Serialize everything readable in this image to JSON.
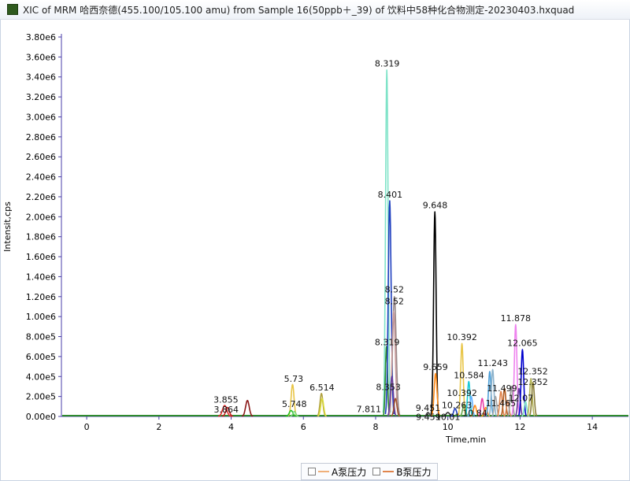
{
  "window": {
    "title": "XIC of MRM 哈西奈德(455.100/105.100 amu) from Sample 16(50ppb＋_39) of 饮料中58种化合物测定-20230403.hxquad",
    "title_color": "#2f5a1e"
  },
  "legend": [
    {
      "label": "A泵压力",
      "color": "#f0b07a"
    },
    {
      "label": "B泵压力",
      "color": "#e0844c"
    }
  ],
  "chart_data": {
    "type": "line",
    "xlabel": "Time,min",
    "ylabel": "Intensit,cps",
    "xlim": [
      -0.7,
      15
    ],
    "ylim": [
      0,
      3800000
    ],
    "x_ticks": [
      0,
      2,
      4,
      6,
      8,
      10,
      12,
      14
    ],
    "x_tick_labels": [
      "0",
      "2",
      "4",
      "6",
      "8",
      "10",
      "12",
      "14"
    ],
    "y_ticks": [
      0,
      200000,
      400000,
      600000,
      800000,
      1000000,
      1200000,
      1400000,
      1600000,
      1800000,
      2000000,
      2200000,
      2400000,
      2600000,
      2800000,
      3000000,
      3200000,
      3400000,
      3600000,
      3800000
    ],
    "y_tick_labels": [
      "0.00e0",
      "2.00e5",
      "4.00e5",
      "6.00e5",
      "8.00e5",
      "1.00e6",
      "1.20e6",
      "1.40e6",
      "1.60e6",
      "1.80e6",
      "2.00e6",
      "2.20e6",
      "2.40e6",
      "2.60e6",
      "2.80e6",
      "3.00e6",
      "3.20e6",
      "3.40e6",
      "3.60e6",
      "3.80e6"
    ],
    "grid": false,
    "baseline_color": "#2e8b2e",
    "peaks": [
      {
        "x": 3.82,
        "y": 110000,
        "w": 0.06,
        "color": "#e03030",
        "label": ""
      },
      {
        "x": 3.9,
        "y": 90000,
        "w": 0.05,
        "color": "#c81f1f",
        "label": ""
      },
      {
        "x": 4.45,
        "y": 160000,
        "w": 0.05,
        "color": "#8b1a1a",
        "label": ""
      },
      {
        "x": 5.7,
        "y": 320000,
        "w": 0.04,
        "color": "#e8c547",
        "label": ""
      },
      {
        "x": 5.66,
        "y": 60000,
        "w": 0.05,
        "color": "#27c227",
        "label": ""
      },
      {
        "x": 5.75,
        "y": 50000,
        "w": 0.04,
        "color": "#7cd67c",
        "label": ""
      },
      {
        "x": 6.5,
        "y": 230000,
        "w": 0.04,
        "color": "#b0a040",
        "label": ""
      },
      {
        "x": 6.52,
        "y": 180000,
        "w": 0.04,
        "color": "#d9d93a",
        "label": ""
      },
      {
        "x": 8.31,
        "y": 3470000,
        "w": 0.035,
        "color": "#7fe3c8",
        "label": ""
      },
      {
        "x": 8.3,
        "y": 700000,
        "w": 0.03,
        "color": "#2e8b2e",
        "label": ""
      },
      {
        "x": 8.39,
        "y": 2160000,
        "w": 0.04,
        "color": "#1f3fbf",
        "label": ""
      },
      {
        "x": 8.52,
        "y": 1200000,
        "w": 0.05,
        "color": "#9a8a8a",
        "label": ""
      },
      {
        "x": 8.5,
        "y": 1050000,
        "w": 0.045,
        "color": "#c79a9a",
        "label": ""
      },
      {
        "x": 8.45,
        "y": 400000,
        "w": 0.04,
        "color": "#6a3d9a",
        "label": ""
      },
      {
        "x": 8.55,
        "y": 180000,
        "w": 0.04,
        "color": "#a0522d",
        "label": ""
      },
      {
        "x": 9.64,
        "y": 2050000,
        "w": 0.035,
        "color": "#000000",
        "label": ""
      },
      {
        "x": 9.66,
        "y": 430000,
        "w": 0.04,
        "color": "#ff8c1a",
        "label": ""
      },
      {
        "x": 9.45,
        "y": 40000,
        "w": 0.04,
        "color": "#444444",
        "label": ""
      },
      {
        "x": 10.0,
        "y": 40000,
        "w": 0.05,
        "color": "#333333",
        "label": ""
      },
      {
        "x": 10.2,
        "y": 80000,
        "w": 0.04,
        "color": "#1f3fbf",
        "label": ""
      },
      {
        "x": 10.39,
        "y": 730000,
        "w": 0.035,
        "color": "#e8c547",
        "label": ""
      },
      {
        "x": 10.45,
        "y": 120000,
        "w": 0.04,
        "color": "#6aa84f",
        "label": ""
      },
      {
        "x": 10.58,
        "y": 350000,
        "w": 0.035,
        "color": "#19c9d6",
        "label": ""
      },
      {
        "x": 10.65,
        "y": 200000,
        "w": 0.035,
        "color": "#66b2ff",
        "label": ""
      },
      {
        "x": 10.75,
        "y": 110000,
        "w": 0.04,
        "color": "#ff8c1a",
        "label": ""
      },
      {
        "x": 10.95,
        "y": 180000,
        "w": 0.035,
        "color": "#e83ea8",
        "label": ""
      },
      {
        "x": 11.05,
        "y": 90000,
        "w": 0.04,
        "color": "#ff8c1a",
        "label": ""
      },
      {
        "x": 11.16,
        "y": 450000,
        "w": 0.035,
        "color": "#4fa0d8",
        "label": ""
      },
      {
        "x": 11.24,
        "y": 470000,
        "w": 0.035,
        "color": "#8db3cc",
        "label": ""
      },
      {
        "x": 11.32,
        "y": 200000,
        "w": 0.035,
        "color": "#a6a6a6",
        "label": ""
      },
      {
        "x": 11.47,
        "y": 250000,
        "w": 0.035,
        "color": "#e0844c",
        "label": ""
      },
      {
        "x": 11.57,
        "y": 280000,
        "w": 0.035,
        "color": "#b05a1e",
        "label": ""
      },
      {
        "x": 11.66,
        "y": 150000,
        "w": 0.035,
        "color": "#d98c5f",
        "label": ""
      },
      {
        "x": 11.76,
        "y": 300000,
        "w": 0.035,
        "color": "#9a9a9a",
        "label": ""
      },
      {
        "x": 11.878,
        "y": 920000,
        "w": 0.035,
        "color": "#ee82ee",
        "label": ""
      },
      {
        "x": 11.97,
        "y": 280000,
        "w": 0.035,
        "color": "#6a3d9a",
        "label": ""
      },
      {
        "x": 12.065,
        "y": 670000,
        "w": 0.035,
        "color": "#0000cd",
        "label": ""
      },
      {
        "x": 12.15,
        "y": 150000,
        "w": 0.035,
        "color": "#7fe3c8",
        "label": ""
      },
      {
        "x": 12.3,
        "y": 380000,
        "w": 0.035,
        "color": "#b5b55a",
        "label": ""
      },
      {
        "x": 12.36,
        "y": 340000,
        "w": 0.035,
        "color": "#8a7d3a",
        "label": ""
      }
    ],
    "annotations": [
      {
        "x": 3.855,
        "y": 115000,
        "text": "3.855"
      },
      {
        "x": 3.864,
        "y": 15000,
        "text": "3.864"
      },
      {
        "x": 5.73,
        "y": 325000,
        "text": "5.73"
      },
      {
        "x": 5.748,
        "y": 70000,
        "text": "5.748"
      },
      {
        "x": 6.514,
        "y": 235000,
        "text": "6.514"
      },
      {
        "x": 7.811,
        "y": 20000,
        "text": "7.811"
      },
      {
        "x": 8.319,
        "y": 3480000,
        "text": "8.319"
      },
      {
        "x": 8.401,
        "y": 2170000,
        "text": "8.401"
      },
      {
        "x": 8.52,
        "y": 1220000,
        "text": "8.52"
      },
      {
        "x": 8.52,
        "y": 1100000,
        "text": "8.52"
      },
      {
        "x": 8.319,
        "y": 690000,
        "text": "8.319"
      },
      {
        "x": 8.353,
        "y": 240000,
        "text": "8.353"
      },
      {
        "x": 9.648,
        "y": 2060000,
        "text": "9.648"
      },
      {
        "x": 9.659,
        "y": 440000,
        "text": "9.659"
      },
      {
        "x": 9.451,
        "y": 30000,
        "text": "9.451"
      },
      {
        "x": 9.459,
        "y": -60000,
        "text": "9.459"
      },
      {
        "x": 10.0,
        "y": -60000,
        "text": "10.01"
      },
      {
        "x": 10.392,
        "y": 740000,
        "text": "10.392"
      },
      {
        "x": 10.584,
        "y": 360000,
        "text": "10.584"
      },
      {
        "x": 10.392,
        "y": 180000,
        "text": "10.392"
      },
      {
        "x": 10.25,
        "y": 60000,
        "text": "10.263"
      },
      {
        "x": 10.75,
        "y": -20000,
        "text": "10.84"
      },
      {
        "x": 11.243,
        "y": 480000,
        "text": "11.243"
      },
      {
        "x": 11.499,
        "y": 230000,
        "text": "11.499"
      },
      {
        "x": 11.465,
        "y": 80000,
        "text": "11.465"
      },
      {
        "x": 11.878,
        "y": 930000,
        "text": "11.878"
      },
      {
        "x": 12.065,
        "y": 680000,
        "text": "12.065"
      },
      {
        "x": 12.352,
        "y": 400000,
        "text": "12.352"
      },
      {
        "x": 12.352,
        "y": 290000,
        "text": "12.352"
      },
      {
        "x": 12.02,
        "y": 130000,
        "text": "12.07"
      }
    ]
  }
}
